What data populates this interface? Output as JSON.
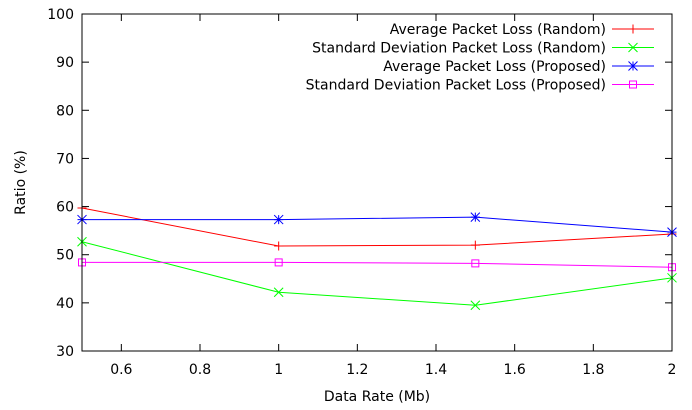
{
  "chart_data": {
    "type": "line",
    "title": "",
    "xlabel": "Data Rate (Mb)",
    "ylabel": "Ratio (%)",
    "xlim": [
      0.5,
      2
    ],
    "ylim": [
      30,
      100
    ],
    "x": [
      0.5,
      1,
      1.5,
      2
    ],
    "xticks": [
      0.6,
      0.8,
      1,
      1.2,
      1.4,
      1.6,
      1.8,
      2
    ],
    "xtick_labels": [
      "0.6",
      "0.8",
      "1",
      "1.2",
      "1.4",
      "1.6",
      "1.8",
      "2"
    ],
    "yticks": [
      30,
      40,
      50,
      60,
      70,
      80,
      90,
      100
    ],
    "ytick_labels": [
      "30",
      "40",
      "50",
      "60",
      "70",
      "80",
      "90",
      "100"
    ],
    "grid": false,
    "legend_position": "top-right",
    "series": [
      {
        "name": "Average Packet Loss (Random)",
        "values": [
          59.7,
          51.8,
          52.0,
          54.3
        ],
        "color": "#ff0000",
        "marker": "plus"
      },
      {
        "name": "Standard Deviation Packet Loss (Random)",
        "values": [
          52.7,
          42.2,
          39.5,
          45.2
        ],
        "color": "#00ff00",
        "marker": "cross"
      },
      {
        "name": "Average Packet Loss (Proposed)",
        "values": [
          57.3,
          57.3,
          57.8,
          54.7
        ],
        "color": "#0000ff",
        "marker": "star"
      },
      {
        "name": "Standard Deviation Packet Loss (Proposed)",
        "values": [
          48.4,
          48.4,
          48.2,
          47.4
        ],
        "color": "#ff00ff",
        "marker": "square"
      }
    ]
  }
}
